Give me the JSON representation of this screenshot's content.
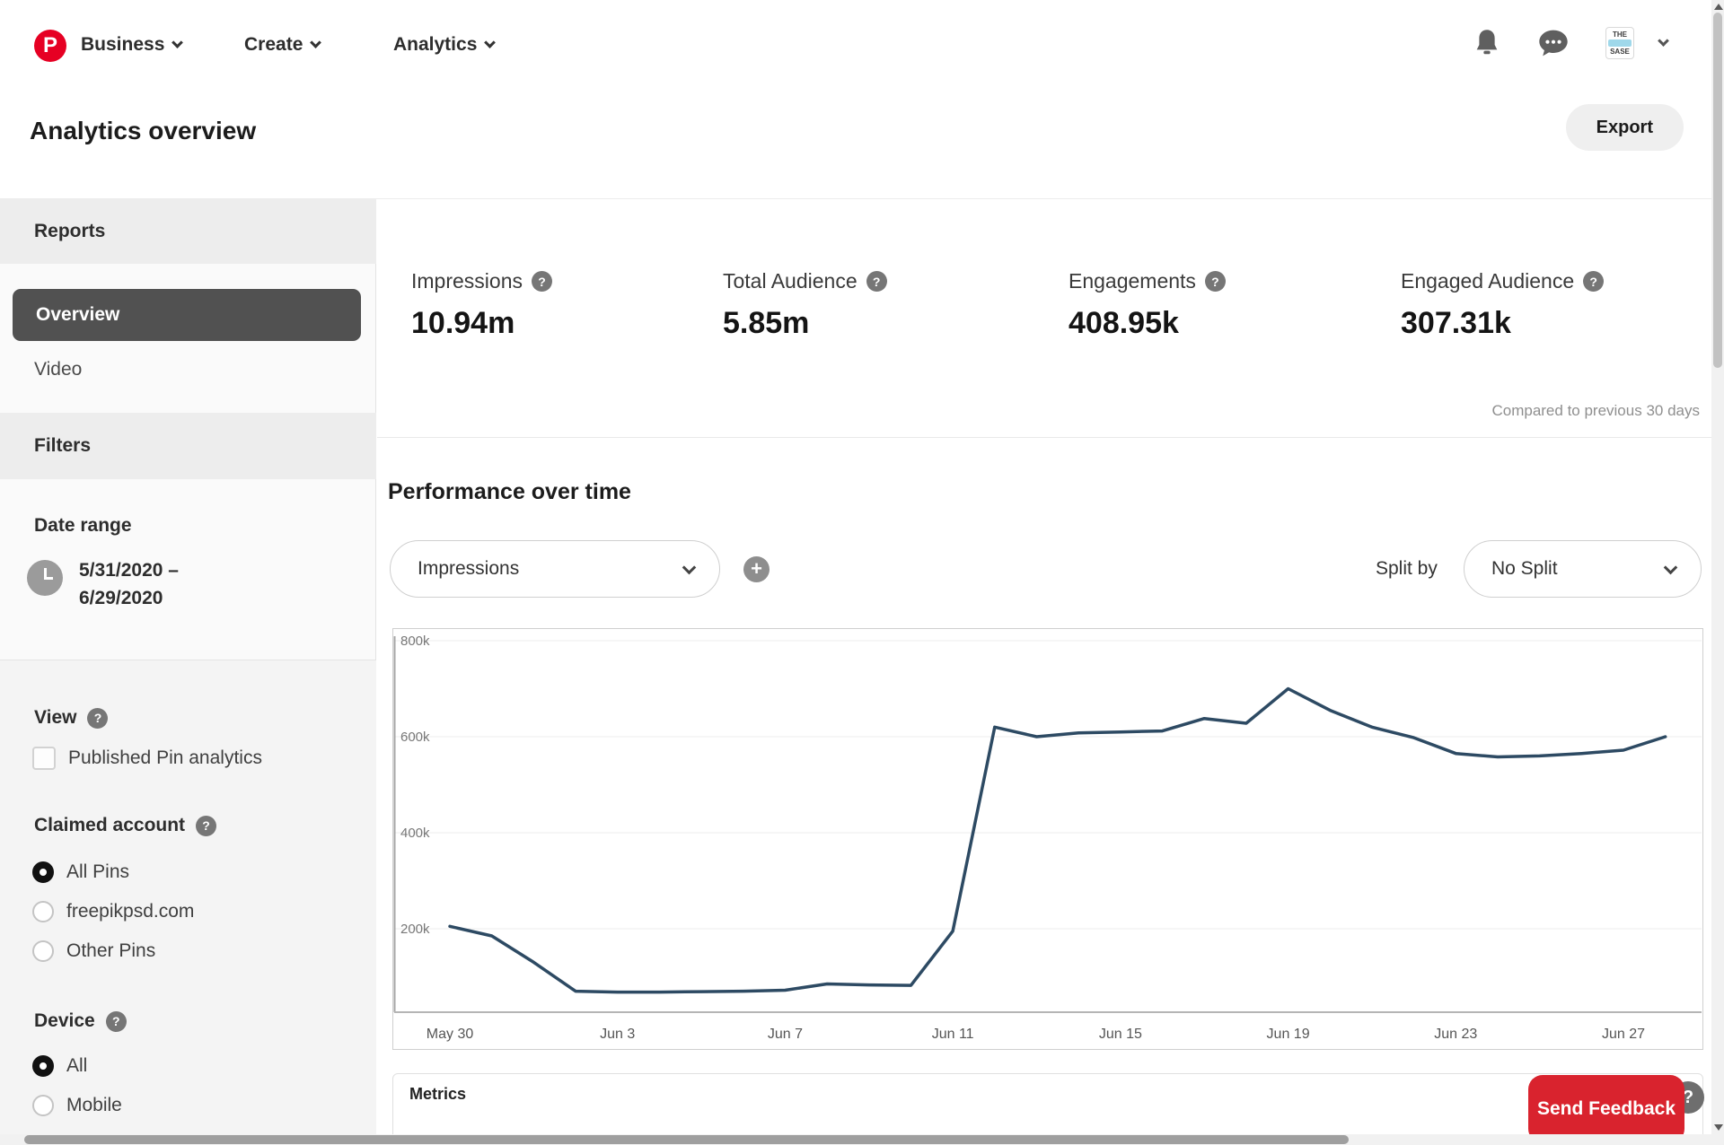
{
  "nav": {
    "brand_letter": "P",
    "items": [
      {
        "label": "Business"
      },
      {
        "label": "Create"
      },
      {
        "label": "Analytics"
      }
    ],
    "avatar_line1": "THE",
    "avatar_line2": "SASE"
  },
  "header": {
    "title": "Analytics overview",
    "export_label": "Export"
  },
  "sidebar": {
    "reports_header": "Reports",
    "report_items": [
      {
        "label": "Overview",
        "selected": true
      },
      {
        "label": "Video",
        "selected": false
      }
    ],
    "filters_header": "Filters",
    "date_range": {
      "label": "Date range",
      "value_line1": "5/31/2020 –",
      "value_line2": "6/29/2020"
    },
    "view": {
      "label": "View",
      "checkbox_label": "Published Pin analytics",
      "checked": false
    },
    "claimed_account": {
      "label": "Claimed account",
      "options": [
        {
          "label": "All Pins",
          "selected": true
        },
        {
          "label": "freepikpsd.com",
          "selected": false
        },
        {
          "label": "Other Pins",
          "selected": false
        }
      ]
    },
    "device": {
      "label": "Device",
      "options": [
        {
          "label": "All",
          "selected": true
        },
        {
          "label": "Mobile",
          "selected": false
        }
      ]
    }
  },
  "metrics": [
    {
      "label": "Impressions",
      "value": "10.94m"
    },
    {
      "label": "Total Audience",
      "value": "5.85m"
    },
    {
      "label": "Engagements",
      "value": "408.95k"
    },
    {
      "label": "Engaged Audience",
      "value": "307.31k"
    }
  ],
  "compared_note": "Compared to previous 30 days",
  "performance": {
    "title": "Performance over time",
    "metric_dropdown_value": "Impressions",
    "split_by_label": "Split by",
    "split_dropdown_value": "No Split"
  },
  "chart_data": {
    "type": "line",
    "title": "Performance over time",
    "x_labels": [
      "May 30",
      "May 31",
      "Jun 1",
      "Jun 2",
      "Jun 3",
      "Jun 4",
      "Jun 5",
      "Jun 6",
      "Jun 7",
      "Jun 8",
      "Jun 9",
      "Jun 10",
      "Jun 11",
      "Jun 12",
      "Jun 13",
      "Jun 14",
      "Jun 15",
      "Jun 16",
      "Jun 17",
      "Jun 18",
      "Jun 19",
      "Jun 20",
      "Jun 21",
      "Jun 22",
      "Jun 23",
      "Jun 24",
      "Jun 25",
      "Jun 26",
      "Jun 27",
      "Jun 28"
    ],
    "series": [
      {
        "name": "Impressions",
        "color": "#2d4a63",
        "values": [
          205000,
          185000,
          130000,
          70000,
          68000,
          68000,
          69000,
          70000,
          72000,
          85000,
          83000,
          82000,
          195000,
          620000,
          600000,
          608000,
          610000,
          612000,
          638000,
          628000,
          700000,
          655000,
          620000,
          598000,
          565000,
          558000,
          560000,
          565000,
          572000,
          600000
        ]
      }
    ],
    "x_ticks": [
      {
        "index": 0,
        "label": "May 30"
      },
      {
        "index": 4,
        "label": "Jun 3"
      },
      {
        "index": 8,
        "label": "Jun 7"
      },
      {
        "index": 12,
        "label": "Jun 11"
      },
      {
        "index": 16,
        "label": "Jun 15"
      },
      {
        "index": 20,
        "label": "Jun 19"
      },
      {
        "index": 24,
        "label": "Jun 23"
      },
      {
        "index": 28,
        "label": "Jun 27"
      }
    ],
    "y_ticks": [
      {
        "value": 200000,
        "label": "200k"
      },
      {
        "value": 400000,
        "label": "400k"
      },
      {
        "value": 600000,
        "label": "600k"
      },
      {
        "value": 800000,
        "label": "800k"
      }
    ],
    "ylim": [
      0,
      825000
    ],
    "grid": true,
    "legend_position": "none"
  },
  "metrics_section": {
    "title": "Metrics"
  },
  "feedback_button_label": "Send Feedback",
  "colors": {
    "brand_red": "#e60023",
    "feedback_red": "#d9232e",
    "line_color": "#2d4a63",
    "selected_pill": "#515151"
  }
}
